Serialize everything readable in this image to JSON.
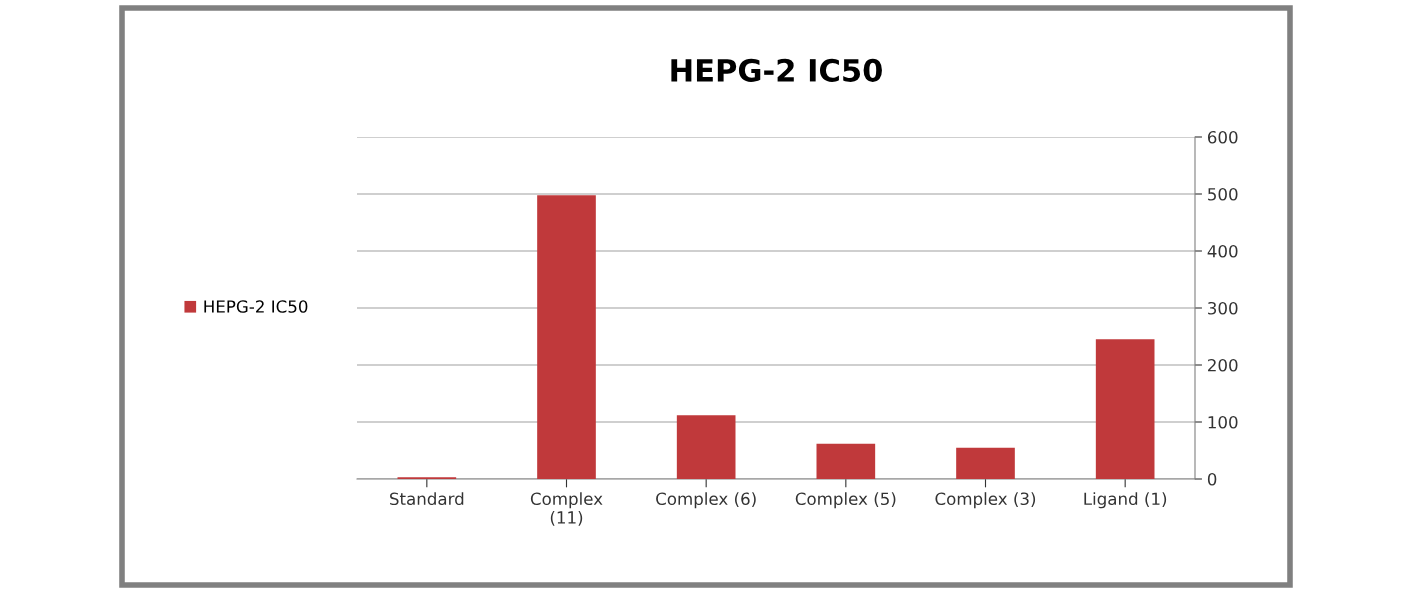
{
  "chart_data": {
    "type": "bar",
    "title": "HEPG-2 IC50",
    "categories": [
      "Standard",
      "Complex\n(11)",
      "Complex (6)",
      "Complex (5)",
      "Complex (3)",
      "Ligand (1)"
    ],
    "series": [
      {
        "name": "HEPG-2 IC50",
        "color": "#c0393b",
        "values": [
          3,
          498,
          112,
          62,
          55,
          245
        ]
      }
    ],
    "ylim": [
      0,
      600
    ],
    "yticks": [
      0,
      100,
      200,
      300,
      400,
      500,
      600
    ],
    "grid": "y",
    "legend": "left"
  }
}
